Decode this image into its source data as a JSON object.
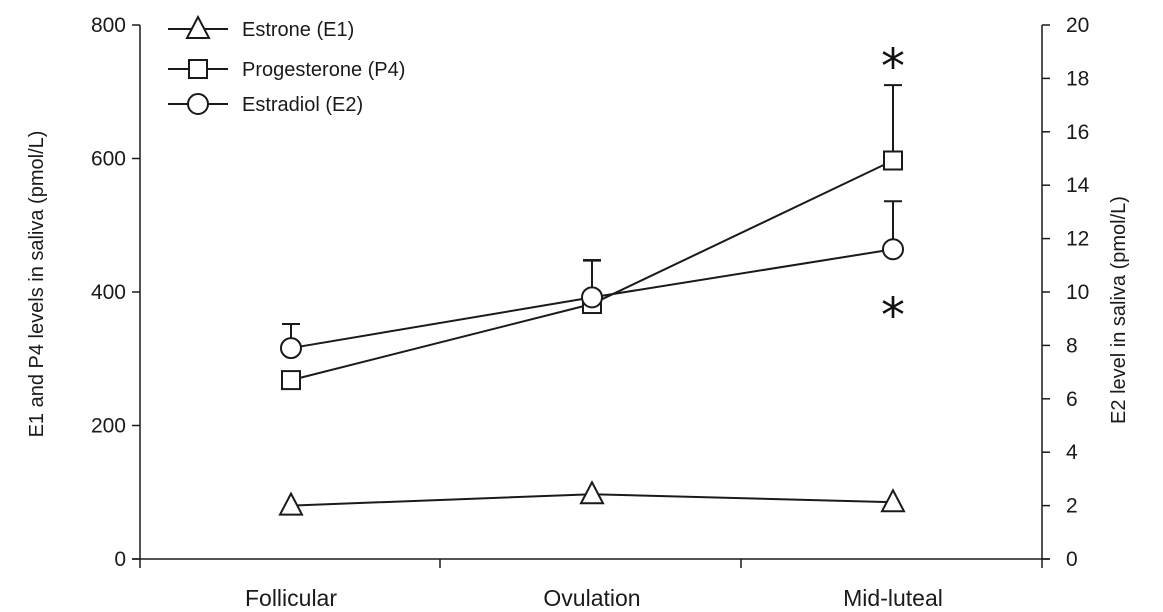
{
  "chart_data": {
    "type": "line",
    "title": "",
    "categories": [
      "Follicular",
      "Ovulation",
      "Mid-luteal"
    ],
    "y_left": {
      "label": "E1 and P4 levels in saliva (pmol/L)",
      "range": [
        0,
        800
      ],
      "ticks": [
        "0",
        "200",
        "400",
        "600",
        "800"
      ]
    },
    "y_right": {
      "label": "E2  level in saliva (pmol/L)",
      "range": [
        0,
        20
      ],
      "ticks": [
        "0",
        "2",
        "4",
        "6",
        "8",
        "10",
        "12",
        "14",
        "16",
        "18",
        "20"
      ]
    },
    "grid": false,
    "legend_position": "top-left",
    "series": [
      {
        "name": "Estrone (E1)",
        "axis": "left",
        "marker": "triangle",
        "values": [
          80,
          97,
          85
        ],
        "error_plus": [
          0,
          0,
          0
        ]
      },
      {
        "name": "Progesterone (P4)",
        "axis": "left",
        "marker": "square",
        "values": [
          268,
          382,
          597
        ],
        "error_plus": [
          0,
          65,
          113
        ]
      },
      {
        "name": "Estradiol (E2)",
        "axis": "right",
        "marker": "circle",
        "values": [
          7.9,
          9.8,
          11.6
        ],
        "error_plus": [
          0.9,
          1.4,
          1.8
        ]
      }
    ],
    "annotations": [
      {
        "text": "*",
        "category": "Mid-luteal",
        "axis": "left",
        "value": 755
      },
      {
        "text": "*",
        "category": "Mid-luteal",
        "axis": "left",
        "value": 382
      }
    ]
  },
  "colors": {
    "line": "#1a1a1a",
    "marker_fill": "#ffffff"
  }
}
